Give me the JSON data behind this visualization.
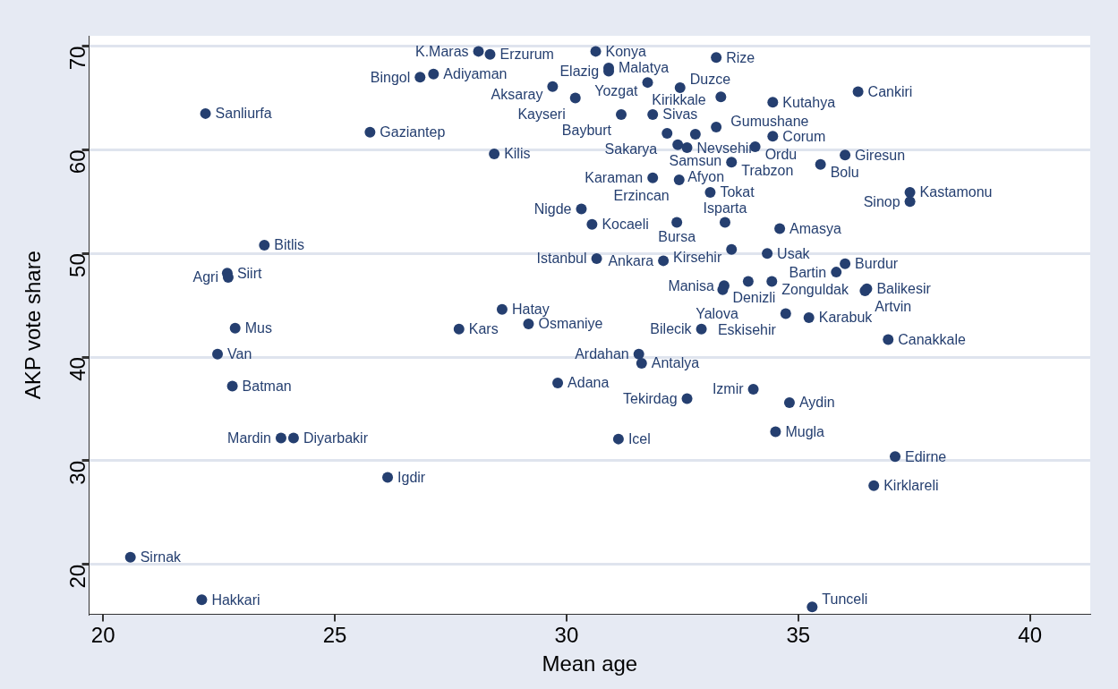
{
  "chart_data": {
    "type": "scatter",
    "xlabel": "Mean age",
    "ylabel": "AKP vote share",
    "xlim": [
      19.7,
      41.3
    ],
    "ylim": [
      15.2,
      71
    ],
    "xticks": [
      20,
      25,
      30,
      35,
      40
    ],
    "yticks": [
      20,
      30,
      40,
      50,
      60,
      70
    ],
    "grid": "y",
    "legend": false,
    "marker": "circle",
    "series": [
      {
        "color": "#253f70",
        "x": [
          28.1,
          28.35,
          30.63,
          33.23,
          26.84,
          27.13,
          30.91,
          30.91,
          31.75,
          29.7,
          32.45,
          36.29,
          33.33,
          34.45,
          30.19,
          22.21,
          31.18,
          31.86,
          33.23,
          25.76,
          32.17,
          32.78,
          34.45,
          32.4,
          32.6,
          34.07,
          28.44,
          36.01,
          33.56,
          35.48,
          31.86,
          32.43,
          33.1,
          37.41,
          37.41,
          30.32,
          30.55,
          32.38,
          33.42,
          34.6,
          33.56,
          34.33,
          30.65,
          32.09,
          36.01,
          35.82,
          33.4,
          33.37,
          33.92,
          34.43,
          36.48,
          36.44,
          34.73,
          35.23,
          28.61,
          27.68,
          29.18,
          32.91,
          36.94,
          31.56,
          31.62,
          29.81,
          34.03,
          32.6,
          34.81,
          34.51,
          31.12,
          37.09,
          36.63,
          35.3,
          23.48,
          22.68,
          22.7,
          22.85,
          22.47,
          22.79,
          23.84,
          24.11,
          26.14,
          20.59,
          22.13
        ],
        "values": [
          69.5,
          69.2,
          69.5,
          68.9,
          67.0,
          67.3,
          67.9,
          67.6,
          66.5,
          66.1,
          66.0,
          65.6,
          65.1,
          64.6,
          65.0,
          63.5,
          63.4,
          63.4,
          62.2,
          61.7,
          61.6,
          61.5,
          61.3,
          60.5,
          60.2,
          60.3,
          59.6,
          59.5,
          58.8,
          58.6,
          57.3,
          57.1,
          55.9,
          55.9,
          55.0,
          54.3,
          52.8,
          53.0,
          53.0,
          52.4,
          50.4,
          50.0,
          49.5,
          49.3,
          49.0,
          48.2,
          46.9,
          46.5,
          47.3,
          47.3,
          46.6,
          46.4,
          44.2,
          43.8,
          44.6,
          42.7,
          43.2,
          42.7,
          41.7,
          40.3,
          39.4,
          37.5,
          36.9,
          36.0,
          35.6,
          32.8,
          32.1,
          30.4,
          27.6,
          15.9,
          50.8,
          48.1,
          47.7,
          42.8,
          40.3,
          37.2,
          32.2,
          32.2,
          28.4,
          20.7,
          16.6
        ],
        "value_labels": [
          "K.Maras",
          "Erzurum",
          "Konya",
          "Rize",
          "Bingol",
          "Adiyaman",
          "Malatya",
          "Elazig",
          "Yozgat",
          "Aksaray",
          "Duzce",
          "Cankiri",
          "Gumushane",
          "Kutahya",
          "Kayseri",
          "Sanliurfa",
          "Bayburt",
          "Sivas",
          "Kirikkale",
          "Gaziantep",
          "Sakarya",
          "Samsun",
          "Corum",
          "Afyon",
          "Nevsehir",
          "Ordu",
          "Kilis",
          "Giresun",
          "Trabzon",
          "Bolu",
          "Karaman",
          "Erzincan",
          "Tokat",
          "Kastamonu",
          "Sinop",
          "Nigde",
          "Kocaeli",
          "Bursa",
          "Isparta",
          "Amasya",
          "Kirsehir",
          "Usak",
          "Istanbul",
          "Ankara",
          "Burdur",
          "Bartin",
          "Manisa",
          "Denizli",
          "Yalova",
          "Zonguldak",
          "Balikesir",
          "Artvin",
          "Eskisehir",
          "Karabuk",
          "Hatay",
          "Kars",
          "Osmaniye",
          "Bilecik",
          "Canakkale",
          "Ardahan",
          "Antalya",
          "Adana",
          "Izmir",
          "Tekirdag",
          "Aydin",
          "Mugla",
          "Icel",
          "Edirne",
          "Kirklareli",
          "Tunceli",
          "Bitlis",
          "Siirt",
          "Agri",
          "Mus",
          "Van",
          "Batman",
          "Mardin",
          "Diyarbakir",
          "Igdir",
          "Sirnak",
          "Hakkari"
        ]
      }
    ]
  }
}
